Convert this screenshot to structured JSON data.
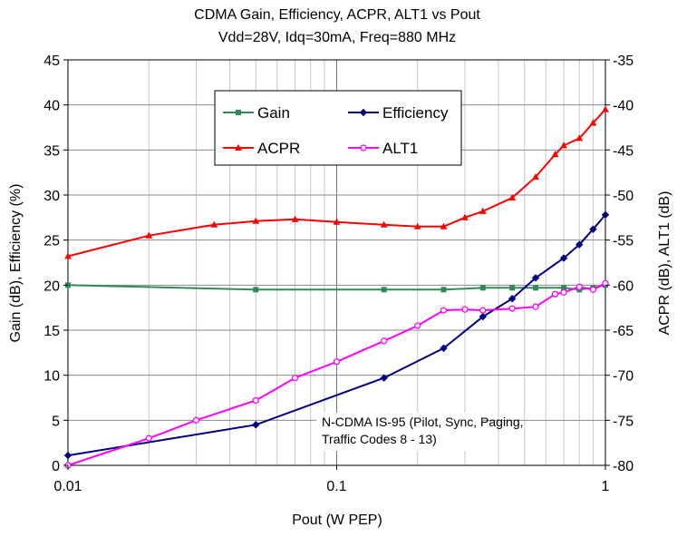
{
  "chart_data": {
    "type": "line",
    "title": "CDMA Gain, Efficiency, ACPR, ALT1 vs Pout",
    "subtitle": "Vdd=28V, Idq=30mA, Freq=880 MHz",
    "xlabel": "Pout (W PEP)",
    "ylabel_left": "Gain (dB), Efficiency (%)",
    "ylabel_right": "ACPR (dB), ALT1 (dB)",
    "xscale": "log",
    "xlim": [
      0.01,
      1
    ],
    "ylim_left": [
      0,
      45
    ],
    "ylim_right": [
      -80,
      -35
    ],
    "x_ticks": [
      "0.01",
      "0.1",
      "1"
    ],
    "y_ticks_left": [
      "0",
      "5",
      "10",
      "15",
      "20",
      "25",
      "30",
      "35",
      "40",
      "45"
    ],
    "y_ticks_right": [
      "-80",
      "-75",
      "-70",
      "-65",
      "-60",
      "-55",
      "-50",
      "-45",
      "-40",
      "-35"
    ],
    "grid": "vertical log minor + horizontal major",
    "legend_placement": "upper-center",
    "annotation": [
      "N-CDMA IS-95 (Pilot, Sync, Paging,",
      "Traffic Codes 8 - 13)"
    ],
    "series": [
      {
        "name": "Gain",
        "axis": "left",
        "color": "#2e8b57",
        "marker": "square",
        "x": [
          0.01,
          0.05,
          0.15,
          0.25,
          0.35,
          0.45,
          0.55,
          0.7,
          0.8,
          0.9,
          1.0
        ],
        "y": [
          20.0,
          19.5,
          19.5,
          19.5,
          19.7,
          19.7,
          19.7,
          19.7,
          19.5,
          19.7,
          20.0
        ]
      },
      {
        "name": "Efficiency",
        "axis": "left",
        "color": "#000080",
        "marker": "diamond",
        "x": [
          0.01,
          0.05,
          0.15,
          0.25,
          0.35,
          0.45,
          0.55,
          0.7,
          0.8,
          0.9,
          1.0
        ],
        "y": [
          1.1,
          4.5,
          9.7,
          13.0,
          16.5,
          18.5,
          20.8,
          23.0,
          24.5,
          26.2,
          27.8
        ]
      },
      {
        "name": "ACPR",
        "axis": "right",
        "color": "#ff0000",
        "marker": "triangle",
        "x": [
          0.01,
          0.02,
          0.035,
          0.05,
          0.07,
          0.1,
          0.15,
          0.2,
          0.25,
          0.3,
          0.35,
          0.45,
          0.55,
          0.65,
          0.7,
          0.8,
          0.9,
          1.0
        ],
        "y": [
          -56.8,
          -54.5,
          -53.3,
          -52.9,
          -52.7,
          -53.0,
          -53.3,
          -53.5,
          -53.5,
          -52.5,
          -51.8,
          -50.3,
          -48.0,
          -45.5,
          -44.5,
          -43.7,
          -42.0,
          -40.5
        ]
      },
      {
        "name": "ALT1",
        "axis": "right",
        "color": "#ff00ff",
        "marker": "circle",
        "x": [
          0.01,
          0.02,
          0.03,
          0.05,
          0.07,
          0.1,
          0.15,
          0.2,
          0.25,
          0.3,
          0.35,
          0.45,
          0.55,
          0.65,
          0.7,
          0.8,
          0.9,
          1.0
        ],
        "y": [
          -80.0,
          -77.0,
          -75.0,
          -72.8,
          -70.3,
          -68.5,
          -66.2,
          -64.5,
          -62.8,
          -62.7,
          -62.8,
          -62.6,
          -62.4,
          -61.0,
          -60.8,
          -60.2,
          -60.5,
          -59.8
        ]
      }
    ]
  }
}
